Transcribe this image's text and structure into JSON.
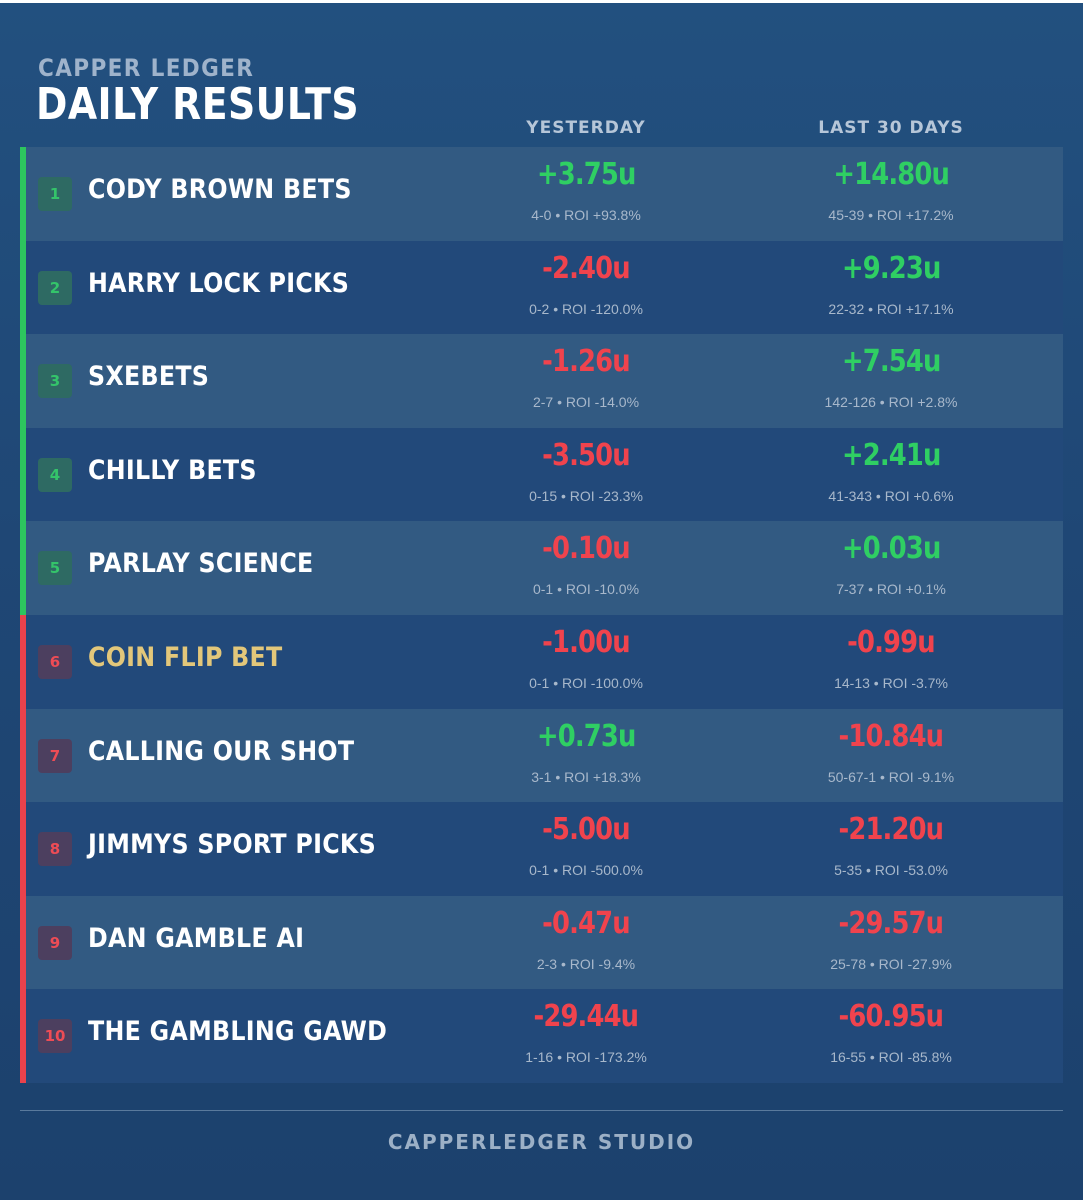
{
  "header": {
    "brand": "CAPPER LEDGER",
    "title": "DAILY RESULTS",
    "col_yesterday": "YESTERDAY",
    "col_last30": "LAST 30 DAYS"
  },
  "colors": {
    "positive": "#2fcf63",
    "negative": "#f0434d",
    "highlight_name": "#e3c77a"
  },
  "rows": [
    {
      "rank": "1",
      "name": "CODY BROWN BETS",
      "status": "win",
      "yesterday": {
        "units": "+3.75u",
        "record": "4-0 • ROI +93.8%",
        "sign": "pos"
      },
      "last30": {
        "units": "+14.80u",
        "record": "45-39 • ROI +17.2%",
        "sign": "pos"
      }
    },
    {
      "rank": "2",
      "name": "HARRY LOCK PICKS",
      "status": "win",
      "yesterday": {
        "units": "-2.40u",
        "record": "0-2 • ROI -120.0%",
        "sign": "neg"
      },
      "last30": {
        "units": "+9.23u",
        "record": "22-32 • ROI +17.1%",
        "sign": "pos"
      }
    },
    {
      "rank": "3",
      "name": "SXEBETS",
      "status": "win",
      "yesterday": {
        "units": "-1.26u",
        "record": "2-7 • ROI -14.0%",
        "sign": "neg"
      },
      "last30": {
        "units": "+7.54u",
        "record": "142-126 • ROI +2.8%",
        "sign": "pos"
      }
    },
    {
      "rank": "4",
      "name": "CHILLY BETS",
      "status": "win",
      "yesterday": {
        "units": "-3.50u",
        "record": "0-15 • ROI -23.3%",
        "sign": "neg"
      },
      "last30": {
        "units": "+2.41u",
        "record": "41-343 • ROI +0.6%",
        "sign": "pos"
      }
    },
    {
      "rank": "5",
      "name": "PARLAY SCIENCE",
      "status": "win",
      "yesterday": {
        "units": "-0.10u",
        "record": "0-1 • ROI -10.0%",
        "sign": "neg"
      },
      "last30": {
        "units": "+0.03u",
        "record": "7-37 • ROI +0.1%",
        "sign": "pos"
      }
    },
    {
      "rank": "6",
      "name": "COIN FLIP BET",
      "status": "loss",
      "highlight": true,
      "yesterday": {
        "units": "-1.00u",
        "record": "0-1 • ROI -100.0%",
        "sign": "neg"
      },
      "last30": {
        "units": "-0.99u",
        "record": "14-13 • ROI -3.7%",
        "sign": "neg"
      }
    },
    {
      "rank": "7",
      "name": "CALLING OUR SHOT",
      "status": "loss",
      "yesterday": {
        "units": "+0.73u",
        "record": "3-1 • ROI +18.3%",
        "sign": "pos"
      },
      "last30": {
        "units": "-10.84u",
        "record": "50-67-1 • ROI -9.1%",
        "sign": "neg"
      }
    },
    {
      "rank": "8",
      "name": "JIMMYS SPORT PICKS",
      "status": "loss",
      "yesterday": {
        "units": "-5.00u",
        "record": "0-1 • ROI -500.0%",
        "sign": "neg"
      },
      "last30": {
        "units": "-21.20u",
        "record": "5-35 • ROI -53.0%",
        "sign": "neg"
      }
    },
    {
      "rank": "9",
      "name": "DAN GAMBLE AI",
      "status": "loss",
      "yesterday": {
        "units": "-0.47u",
        "record": "2-3 • ROI -9.4%",
        "sign": "neg"
      },
      "last30": {
        "units": "-29.57u",
        "record": "25-78 • ROI -27.9%",
        "sign": "neg"
      }
    },
    {
      "rank": "10",
      "name": "THE GAMBLING GAWD",
      "status": "loss",
      "yesterday": {
        "units": "-29.44u",
        "record": "1-16 • ROI -173.2%",
        "sign": "neg"
      },
      "last30": {
        "units": "-60.95u",
        "record": "16-55 • ROI -85.8%",
        "sign": "neg"
      }
    }
  ],
  "footer": {
    "text": "CAPPERLEDGER STUDIO"
  }
}
